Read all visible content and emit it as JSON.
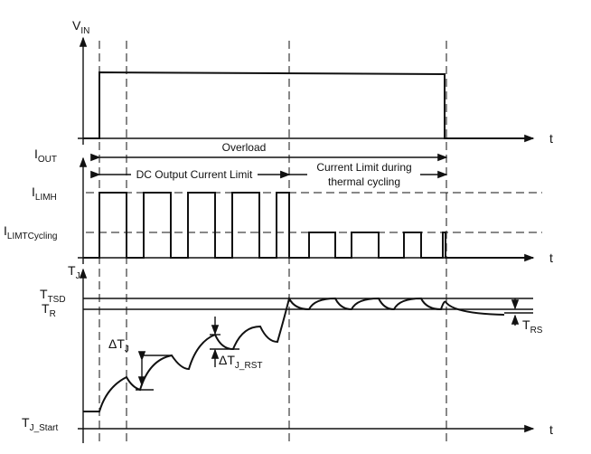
{
  "axis_time_label": "t",
  "vin": {
    "label": "V",
    "sub": "IN"
  },
  "iout": {
    "label": "I",
    "sub": "OUT"
  },
  "ilimh": {
    "label": "I",
    "sub": "LIMH"
  },
  "ilimcyc": {
    "label": "I",
    "sub": "LIMTCycling"
  },
  "tj": {
    "label": "T",
    "sub": "J"
  },
  "ttsd": {
    "label": "T",
    "sub": "TSD"
  },
  "tr": {
    "label": "T",
    "sub": "R"
  },
  "tjstart": {
    "label": "T",
    "sub": "J_Start"
  },
  "dtj": {
    "label": "ΔT",
    "sub": "J"
  },
  "dtjrst": {
    "label": "ΔT",
    "sub": "J_RST"
  },
  "trs": {
    "label": "T",
    "sub": "RS"
  },
  "annotations": {
    "overload": "Overload",
    "dc_limit": "DC Output Current Limit",
    "thermal_line1": "Current Limit during",
    "thermal_line2": "thermal cycling"
  }
}
